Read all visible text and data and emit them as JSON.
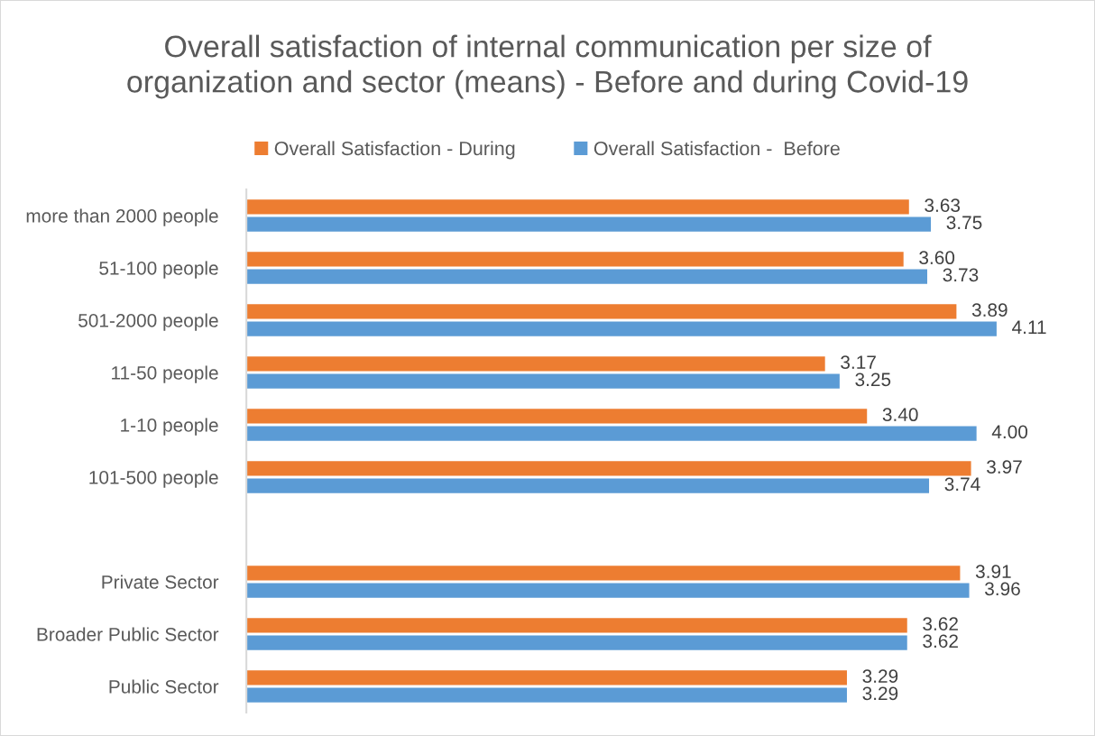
{
  "chart_data": {
    "type": "bar",
    "orientation": "horizontal",
    "title": "Overall satisfaction of internal communication per size of\norganization and sector (means) - Before and during Covid-19",
    "categories": [
      "more than 2000 people",
      "51-100 people",
      "501-2000 people",
      "11-50 people",
      "1-10 people",
      "101-500 people",
      null,
      "Private Sector",
      "Broader Public Sector",
      "Public Sector"
    ],
    "series": [
      {
        "name": "Overall Satisfaction - During",
        "color": "#ed7d31",
        "values": [
          3.63,
          3.6,
          3.89,
          3.17,
          3.4,
          3.97,
          null,
          3.91,
          3.62,
          3.29
        ],
        "value_labels": [
          "3.63",
          "3.60",
          "3.89",
          "3.17",
          "3.40",
          "3.97",
          null,
          "3.91",
          "3.62",
          "3.29"
        ]
      },
      {
        "name": "Overall Satisfaction -  Before",
        "color": "#5b9bd5",
        "values": [
          3.75,
          3.73,
          4.11,
          3.25,
          4.0,
          3.74,
          null,
          3.96,
          3.62,
          3.29
        ],
        "value_labels": [
          "3.75",
          "3.73",
          "4.11",
          "3.25",
          "4.00",
          "3.74",
          null,
          "3.96",
          "3.62",
          "3.29"
        ]
      }
    ],
    "tick_labels": "y",
    "grid": false,
    "legend": "top"
  }
}
